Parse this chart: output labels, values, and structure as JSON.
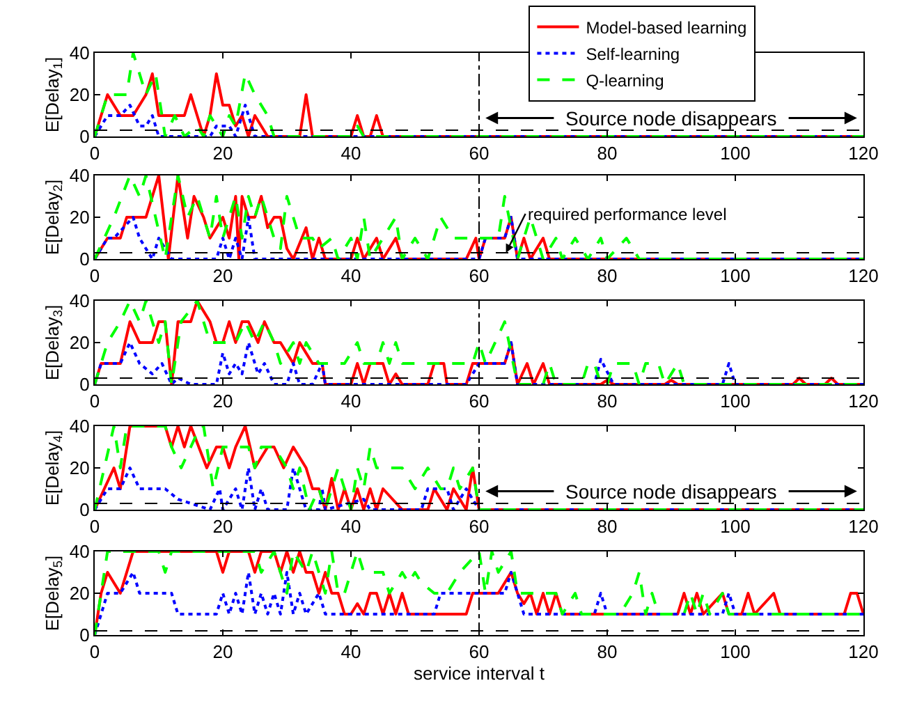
{
  "chart_data": [
    {
      "type": "line",
      "ylabel": "E[Delay$_{1}$]",
      "xlim": [
        0,
        120
      ],
      "ylim": [
        0,
        40
      ],
      "xticks": [
        0,
        20,
        40,
        60,
        80,
        100,
        120
      ],
      "yticks": [
        0,
        20,
        40
      ],
      "legend": "top right",
      "series": [
        {
          "name": "Model-based learning",
          "color": "#ff0000",
          "line_style": "solid",
          "x": [
            0,
            2,
            4,
            6,
            8,
            9,
            10,
            12,
            14,
            15,
            16,
            17,
            18,
            19,
            20,
            21,
            22,
            23,
            24,
            25,
            26,
            27,
            32,
            33,
            34,
            40,
            41,
            42,
            43,
            44,
            45,
            120
          ],
          "values": [
            0,
            20,
            10,
            10,
            20,
            30,
            10,
            10,
            10,
            20,
            10,
            0,
            10,
            30,
            15,
            15,
            5,
            10,
            0,
            10,
            5,
            0,
            0,
            20,
            0,
            0,
            10,
            0,
            0,
            10,
            0,
            0
          ]
        },
        {
          "name": "Self-learning",
          "color": "#0000ff",
          "line_style": "dotted",
          "x": [
            0,
            2,
            4,
            5.5,
            7,
            8,
            9,
            10,
            11,
            18,
            19,
            21,
            22,
            23.5,
            25,
            120
          ],
          "values": [
            0,
            10,
            10,
            15,
            5,
            5,
            10,
            0,
            0,
            0,
            5,
            5,
            0,
            15,
            0,
            0
          ]
        },
        {
          "name": "Q-learning",
          "color": "#00ff00",
          "line_style": "dashed",
          "x": [
            0,
            2,
            5,
            6,
            8,
            9.5,
            11,
            12.5,
            14,
            16,
            17,
            18,
            19,
            20,
            21,
            22,
            23.5,
            25,
            27,
            28,
            40,
            41,
            42,
            120
          ],
          "values": [
            0,
            20,
            20,
            40,
            20,
            30,
            0,
            10,
            0,
            5,
            0,
            10,
            5,
            0,
            10,
            5,
            30,
            20,
            10,
            0,
            0,
            5,
            0,
            0
          ]
        }
      ],
      "ref_lines": [
        {
          "axis": "y",
          "value": 3,
          "color": "#000000",
          "line_style": "dashed"
        },
        {
          "axis": "x",
          "value": 60,
          "color": "#000000",
          "line_style": "dashdot"
        }
      ],
      "annotations": [
        "Source node disappears"
      ]
    },
    {
      "type": "line",
      "ylabel": "E[Delay$_{2}$]",
      "xlim": [
        0,
        120
      ],
      "ylim": [
        0,
        40
      ],
      "xticks": [
        0,
        20,
        40,
        60,
        80,
        100,
        120
      ],
      "yticks": [
        0,
        20,
        40
      ],
      "series": [
        {
          "color": "#ff0000",
          "line_style": "solid",
          "x": [
            0,
            2,
            4,
            5,
            8,
            10,
            11.5,
            13,
            14.5,
            15.5,
            17,
            18,
            20,
            21,
            22,
            22.5,
            23,
            24,
            25,
            26,
            27,
            28,
            29,
            30,
            31,
            33,
            34,
            35,
            36,
            40,
            41,
            42,
            44,
            45,
            47,
            48,
            58,
            59.5,
            60,
            61,
            64,
            65,
            66,
            67,
            68,
            70,
            71,
            120
          ],
          "values": [
            0,
            10,
            10,
            20,
            20,
            40,
            0,
            40,
            10,
            30,
            20,
            10,
            20,
            10,
            30,
            0,
            30,
            20,
            20,
            30,
            15,
            20,
            20,
            5,
            0,
            15,
            0,
            10,
            0,
            0,
            10,
            0,
            10,
            0,
            10,
            0,
            0,
            10,
            0,
            10,
            10,
            20,
            0,
            10,
            0,
            10,
            0,
            0
          ]
        },
        {
          "color": "#0000ff",
          "line_style": "dotted",
          "x": [
            0,
            2,
            3,
            6,
            7,
            9,
            10,
            12,
            19,
            20,
            21,
            22,
            23,
            24,
            25,
            60,
            61,
            64,
            65,
            66,
            120
          ],
          "values": [
            0,
            10,
            10,
            20,
            10,
            0,
            10,
            0,
            0,
            10,
            0,
            10,
            0,
            20,
            0,
            0,
            10,
            10,
            20,
            0,
            0
          ]
        },
        {
          "color": "#00ff00",
          "line_style": "dashed",
          "x": [
            0,
            3,
            5.5,
            7,
            8,
            11,
            13,
            14.5,
            16,
            18,
            19,
            20,
            22,
            23,
            24,
            25,
            26,
            28,
            29,
            30,
            32,
            34,
            35,
            37,
            38,
            40,
            41,
            42,
            43,
            45,
            47,
            48,
            50,
            52,
            54,
            56,
            58,
            60,
            63,
            64,
            66,
            68,
            70,
            72,
            73,
            75,
            77,
            79,
            80,
            83,
            85,
            120
          ],
          "values": [
            0,
            20,
            40,
            30,
            40,
            0,
            40,
            20,
            30,
            10,
            30,
            10,
            30,
            10,
            30,
            20,
            30,
            10,
            5,
            30,
            10,
            10,
            5,
            10,
            0,
            10,
            0,
            20,
            0,
            10,
            20,
            0,
            10,
            0,
            20,
            10,
            10,
            10,
            10,
            30,
            0,
            20,
            0,
            10,
            0,
            10,
            0,
            10,
            0,
            10,
            0,
            0
          ]
        }
      ],
      "ref_lines": [
        {
          "axis": "y",
          "value": 3,
          "color": "#000000",
          "line_style": "dashed",
          "label": "required performance level"
        },
        {
          "axis": "x",
          "value": 60,
          "color": "#000000",
          "line_style": "dashdot"
        }
      ]
    },
    {
      "type": "line",
      "ylabel": "E[Delay$_{3}$]",
      "xlim": [
        0,
        120
      ],
      "ylim": [
        0,
        40
      ],
      "xticks": [
        0,
        20,
        40,
        60,
        80,
        100,
        120
      ],
      "yticks": [
        0,
        20,
        40
      ],
      "series": [
        {
          "color": "#ff0000",
          "line_style": "solid",
          "x": [
            0,
            1,
            4,
            5.5,
            7,
            9,
            10,
            11,
            12,
            13,
            15,
            16,
            18,
            19,
            20,
            21,
            22,
            23,
            24,
            25.5,
            26.5,
            28,
            29,
            31,
            32,
            34,
            35.5,
            36,
            40,
            41,
            42,
            43,
            45,
            46,
            47,
            48,
            52,
            53,
            54.5,
            55,
            58,
            59,
            64,
            65,
            66,
            67.5,
            68.5,
            70,
            71,
            79,
            80,
            81,
            89,
            90,
            91,
            109,
            110,
            111,
            114,
            115,
            116,
            120
          ],
          "values": [
            0,
            10,
            10,
            30,
            20,
            20,
            30,
            30,
            0,
            30,
            30,
            40,
            30,
            20,
            20,
            30,
            20,
            30,
            30,
            20,
            30,
            20,
            20,
            10,
            20,
            10,
            10,
            0,
            0,
            10,
            0,
            10,
            10,
            0,
            5,
            0,
            0,
            10,
            10,
            0,
            0,
            10,
            10,
            20,
            0,
            10,
            0,
            10,
            0,
            0,
            2,
            0,
            0,
            2,
            0,
            0,
            3,
            0,
            0,
            3,
            0,
            0
          ]
        },
        {
          "color": "#0000ff",
          "line_style": "dotted",
          "x": [
            0,
            1,
            4,
            5.5,
            7,
            9,
            10.5,
            12,
            13,
            15,
            19,
            20,
            21,
            22,
            23,
            24,
            25.5,
            26.5,
            28,
            30,
            31,
            32,
            34,
            35.5,
            36,
            58,
            60,
            64,
            65,
            66,
            78,
            79,
            81,
            98,
            99,
            100,
            120
          ],
          "values": [
            0,
            10,
            10,
            20,
            10,
            5,
            10,
            0,
            3,
            0,
            0,
            15,
            5,
            10,
            5,
            20,
            5,
            10,
            0,
            0,
            10,
            0,
            0,
            10,
            0,
            0,
            10,
            10,
            20,
            0,
            0,
            12,
            0,
            0,
            10,
            0,
            0
          ]
        },
        {
          "color": "#00ff00",
          "line_style": "dashed",
          "x": [
            0,
            2,
            4,
            5.5,
            7,
            8,
            10,
            11,
            12,
            13.5,
            16,
            18,
            22,
            23.5,
            25,
            26.5,
            28,
            29,
            31,
            32,
            33,
            35,
            39,
            41,
            42,
            44,
            45,
            46,
            47,
            48,
            59,
            60,
            61,
            64,
            66,
            70,
            71,
            72,
            76,
            77,
            78,
            79,
            80,
            81,
            84,
            85,
            86,
            88,
            89,
            91,
            92,
            120
          ],
          "values": [
            0,
            20,
            30,
            40,
            30,
            40,
            20,
            30,
            0,
            30,
            40,
            20,
            20,
            30,
            20,
            30,
            20,
            10,
            20,
            10,
            20,
            10,
            10,
            20,
            10,
            10,
            20,
            10,
            20,
            10,
            10,
            20,
            10,
            30,
            0,
            0,
            10,
            0,
            0,
            10,
            10,
            0,
            0,
            10,
            10,
            0,
            10,
            10,
            0,
            10,
            0,
            0
          ]
        }
      ],
      "ref_lines": [
        {
          "axis": "y",
          "value": 3,
          "color": "#000000",
          "line_style": "dashed"
        },
        {
          "axis": "x",
          "value": 60,
          "color": "#000000",
          "line_style": "dashdot"
        }
      ]
    },
    {
      "type": "line",
      "ylabel": "E[Delay$_{4}$]",
      "xlim": [
        0,
        120
      ],
      "ylim": [
        0,
        40
      ],
      "xticks": [
        0,
        20,
        40,
        60,
        80,
        100,
        120
      ],
      "yticks": [
        0,
        20,
        40
      ],
      "series": [
        {
          "color": "#ff0000",
          "line_style": "solid",
          "x": [
            0,
            3,
            4,
            5.5,
            11,
            12,
            13,
            14,
            15,
            17.5,
            19,
            20,
            21,
            22,
            23.5,
            25,
            27,
            28,
            29.5,
            31,
            33,
            34,
            35,
            36,
            37,
            38,
            39,
            40,
            41,
            42,
            43,
            44,
            45,
            48,
            52,
            53,
            55,
            56,
            58,
            59,
            60,
            120
          ],
          "values": [
            0,
            20,
            10,
            40,
            40,
            30,
            40,
            30,
            40,
            20,
            30,
            30,
            20,
            30,
            40,
            20,
            30,
            30,
            20,
            30,
            20,
            10,
            10,
            0,
            15,
            0,
            10,
            0,
            10,
            0,
            10,
            0,
            10,
            0,
            0,
            10,
            0,
            10,
            0,
            20,
            0,
            0
          ]
        },
        {
          "color": "#0000ff",
          "line_style": "dotted",
          "x": [
            0,
            2,
            4,
            5.5,
            7,
            11,
            13,
            18,
            19.5,
            20,
            22,
            23,
            24,
            25,
            26,
            27,
            30,
            31,
            33,
            35,
            35.5,
            36,
            42,
            43,
            51,
            52,
            55,
            56,
            58,
            60,
            120
          ],
          "values": [
            0,
            10,
            10,
            20,
            10,
            10,
            5,
            0,
            10,
            0,
            10,
            0,
            20,
            0,
            10,
            0,
            0,
            20,
            0,
            0,
            10,
            0,
            5,
            0,
            0,
            10,
            10,
            0,
            10,
            0,
            0
          ]
        },
        {
          "color": "#00ff00",
          "line_style": "dashed",
          "x": [
            0,
            3,
            4,
            5,
            11,
            12,
            13.5,
            15,
            16.5,
            17,
            18.5,
            20,
            22,
            24,
            25,
            26,
            28,
            30,
            31,
            32,
            33.5,
            35,
            36,
            38,
            40,
            41,
            42,
            43,
            44,
            46,
            48,
            50,
            52,
            54,
            55,
            56,
            57,
            59,
            60,
            120
          ],
          "values": [
            0,
            40,
            20,
            40,
            40,
            30,
            20,
            30,
            40,
            40,
            10,
            30,
            30,
            30,
            20,
            30,
            30,
            20,
            10,
            20,
            0,
            10,
            0,
            20,
            0,
            20,
            10,
            30,
            20,
            20,
            20,
            10,
            20,
            10,
            10,
            20,
            10,
            20,
            0,
            0
          ]
        }
      ],
      "ref_lines": [
        {
          "axis": "y",
          "value": 3,
          "color": "#000000",
          "line_style": "dashed"
        },
        {
          "axis": "x",
          "value": 60,
          "color": "#000000",
          "line_style": "dashdot"
        }
      ],
      "annotations": [
        "Source node disappears"
      ]
    },
    {
      "type": "line",
      "ylabel": "E[Delay$_{5}$]",
      "xlabel": "service interval t",
      "xlim": [
        0,
        120
      ],
      "ylim": [
        0,
        40
      ],
      "xticks": [
        0,
        20,
        40,
        60,
        80,
        100,
        120
      ],
      "yticks": [
        0,
        20,
        40
      ],
      "series": [
        {
          "color": "#ff0000",
          "line_style": "solid",
          "x": [
            0,
            1,
            2,
            4,
            6,
            19,
            20,
            21,
            24,
            25,
            26,
            28,
            29,
            30,
            31,
            32,
            33,
            34,
            35,
            36,
            37,
            38,
            39,
            40,
            41,
            42,
            43,
            44,
            45,
            46,
            47,
            48,
            49,
            58,
            59,
            63,
            65,
            66,
            67,
            68,
            69,
            70,
            71,
            72,
            73,
            91,
            92,
            93,
            94,
            95,
            98,
            99,
            101,
            102,
            103,
            106,
            107,
            117,
            118,
            119,
            120
          ],
          "values": [
            0,
            20,
            30,
            20,
            40,
            40,
            30,
            40,
            40,
            30,
            40,
            40,
            30,
            40,
            30,
            40,
            30,
            30,
            20,
            30,
            20,
            20,
            10,
            10,
            15,
            10,
            20,
            20,
            10,
            20,
            10,
            20,
            10,
            10,
            20,
            20,
            30,
            20,
            15,
            20,
            10,
            20,
            10,
            20,
            10,
            10,
            20,
            10,
            20,
            10,
            20,
            10,
            10,
            20,
            10,
            20,
            10,
            10,
            20,
            20,
            10
          ]
        },
        {
          "color": "#0000ff",
          "line_style": "dotted",
          "x": [
            0,
            2,
            4,
            6,
            7,
            12,
            13,
            19,
            20,
            21,
            22,
            23,
            24,
            25,
            26,
            27,
            28,
            29,
            30,
            31,
            32,
            33,
            35,
            36,
            53,
            54,
            58,
            64,
            65,
            67,
            78,
            79,
            80,
            98,
            99,
            100,
            120
          ],
          "values": [
            0,
            20,
            20,
            30,
            20,
            20,
            10,
            10,
            20,
            10,
            20,
            10,
            30,
            10,
            20,
            10,
            20,
            10,
            30,
            10,
            20,
            10,
            20,
            10,
            10,
            20,
            20,
            20,
            30,
            10,
            10,
            20,
            10,
            10,
            20,
            10,
            10
          ]
        },
        {
          "color": "#00ff00",
          "line_style": "dashed",
          "x": [
            0,
            1,
            2,
            10,
            11,
            12,
            25,
            26,
            28,
            30,
            31,
            33,
            34,
            36,
            37,
            38,
            39,
            40,
            41,
            42,
            45,
            46,
            48,
            49,
            50,
            51,
            53,
            55,
            57,
            60,
            61,
            62,
            63,
            65,
            66,
            72,
            73,
            75,
            76,
            82,
            84,
            85,
            86,
            87,
            88,
            92,
            93,
            94,
            95,
            96,
            98,
            99,
            120
          ],
          "values": [
            0,
            20,
            40,
            40,
            30,
            40,
            40,
            30,
            40,
            20,
            40,
            30,
            40,
            20,
            40,
            20,
            20,
            30,
            40,
            30,
            30,
            20,
            30,
            25,
            30,
            25,
            20,
            20,
            30,
            40,
            20,
            40,
            30,
            40,
            20,
            20,
            10,
            20,
            10,
            10,
            20,
            30,
            10,
            20,
            10,
            10,
            20,
            10,
            20,
            10,
            20,
            10,
            10
          ]
        }
      ],
      "ref_lines": [
        {
          "axis": "y",
          "value": 2,
          "color": "#000000",
          "line_style": "dashed"
        },
        {
          "axis": "x",
          "value": 60,
          "color": "#000000",
          "line_style": "dashdot"
        }
      ]
    }
  ]
}
